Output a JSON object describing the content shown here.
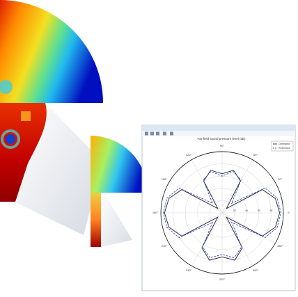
{
  "chart_data": {
    "type": "polar",
    "title": "Far-field sound pressure level (dB)",
    "x": [
      0,
      15,
      30,
      45,
      60,
      75,
      90,
      105,
      120,
      135,
      150,
      165,
      180,
      195,
      210,
      225,
      240,
      255,
      270,
      285,
      300,
      315,
      330,
      345,
      360
    ],
    "series": [
      {
        "name": "Optimized",
        "color": "#333333",
        "values": [
          94,
          90,
          76,
          10,
          60,
          72,
          64,
          72,
          60,
          10,
          76,
          90,
          94,
          90,
          76,
          10,
          66,
          80,
          72,
          80,
          66,
          10,
          76,
          90,
          94
        ]
      },
      {
        "name": "Reference",
        "color": "#3b4fd8",
        "values": [
          96,
          93,
          81,
          22,
          62,
          70,
          60,
          70,
          62,
          22,
          81,
          93,
          96,
          93,
          81,
          22,
          64,
          76,
          68,
          76,
          64,
          22,
          81,
          93,
          96
        ]
      }
    ],
    "rlim": [
      0,
      100
    ],
    "rticks": [
      20,
      40,
      60,
      80
    ],
    "xticks": [
      {
        "value": 0,
        "label": "0°"
      },
      {
        "value": 30,
        "label": "30°"
      },
      {
        "value": 60,
        "label": "60°"
      },
      {
        "value": 90,
        "label": "90°"
      },
      {
        "value": 120,
        "label": "120°"
      },
      {
        "value": 150,
        "label": "150°"
      },
      {
        "value": 180,
        "label": "180°"
      },
      {
        "value": 210,
        "label": "210°"
      },
      {
        "value": 240,
        "label": "240°"
      },
      {
        "value": 270,
        "label": "270°"
      },
      {
        "value": 300,
        "label": "300°"
      },
      {
        "value": 330,
        "label": "330°"
      }
    ],
    "grid": true,
    "legend": "upper right"
  }
}
